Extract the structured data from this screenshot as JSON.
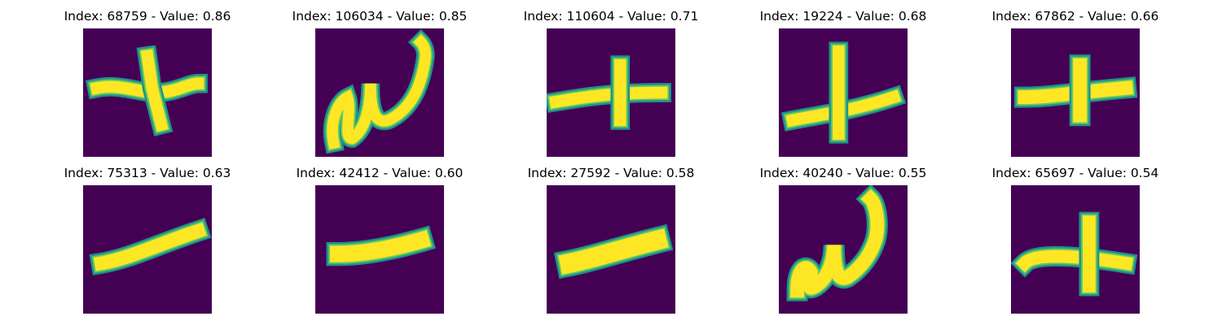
{
  "background_color": "#440154",
  "stroke_colors": {
    "core": "#fde725",
    "edge": "#5ec962",
    "halo": "#21918c"
  },
  "panels": [
    {
      "title": "Index: 68759 - Value: 0.86",
      "glyph": "plus-thin"
    },
    {
      "title": "Index: 106034 - Value: 0.85",
      "glyph": "omega-a"
    },
    {
      "title": "Index: 110604 - Value: 0.71",
      "glyph": "plus-flat"
    },
    {
      "title": "Index: 19224 - Value: 0.68",
      "glyph": "plus-low"
    },
    {
      "title": "Index: 67862 - Value: 0.66",
      "glyph": "plus-bold"
    },
    {
      "title": "Index: 75313 - Value: 0.63",
      "glyph": "dash-tilt"
    },
    {
      "title": "Index: 42412 - Value: 0.60",
      "glyph": "dash-flat"
    },
    {
      "title": "Index: 27592 - Value: 0.58",
      "glyph": "dash-thick"
    },
    {
      "title": "Index: 40240 - Value: 0.55",
      "glyph": "omega-b"
    },
    {
      "title": "Index: 65697 - Value: 0.54",
      "glyph": "plus-hook"
    }
  ]
}
